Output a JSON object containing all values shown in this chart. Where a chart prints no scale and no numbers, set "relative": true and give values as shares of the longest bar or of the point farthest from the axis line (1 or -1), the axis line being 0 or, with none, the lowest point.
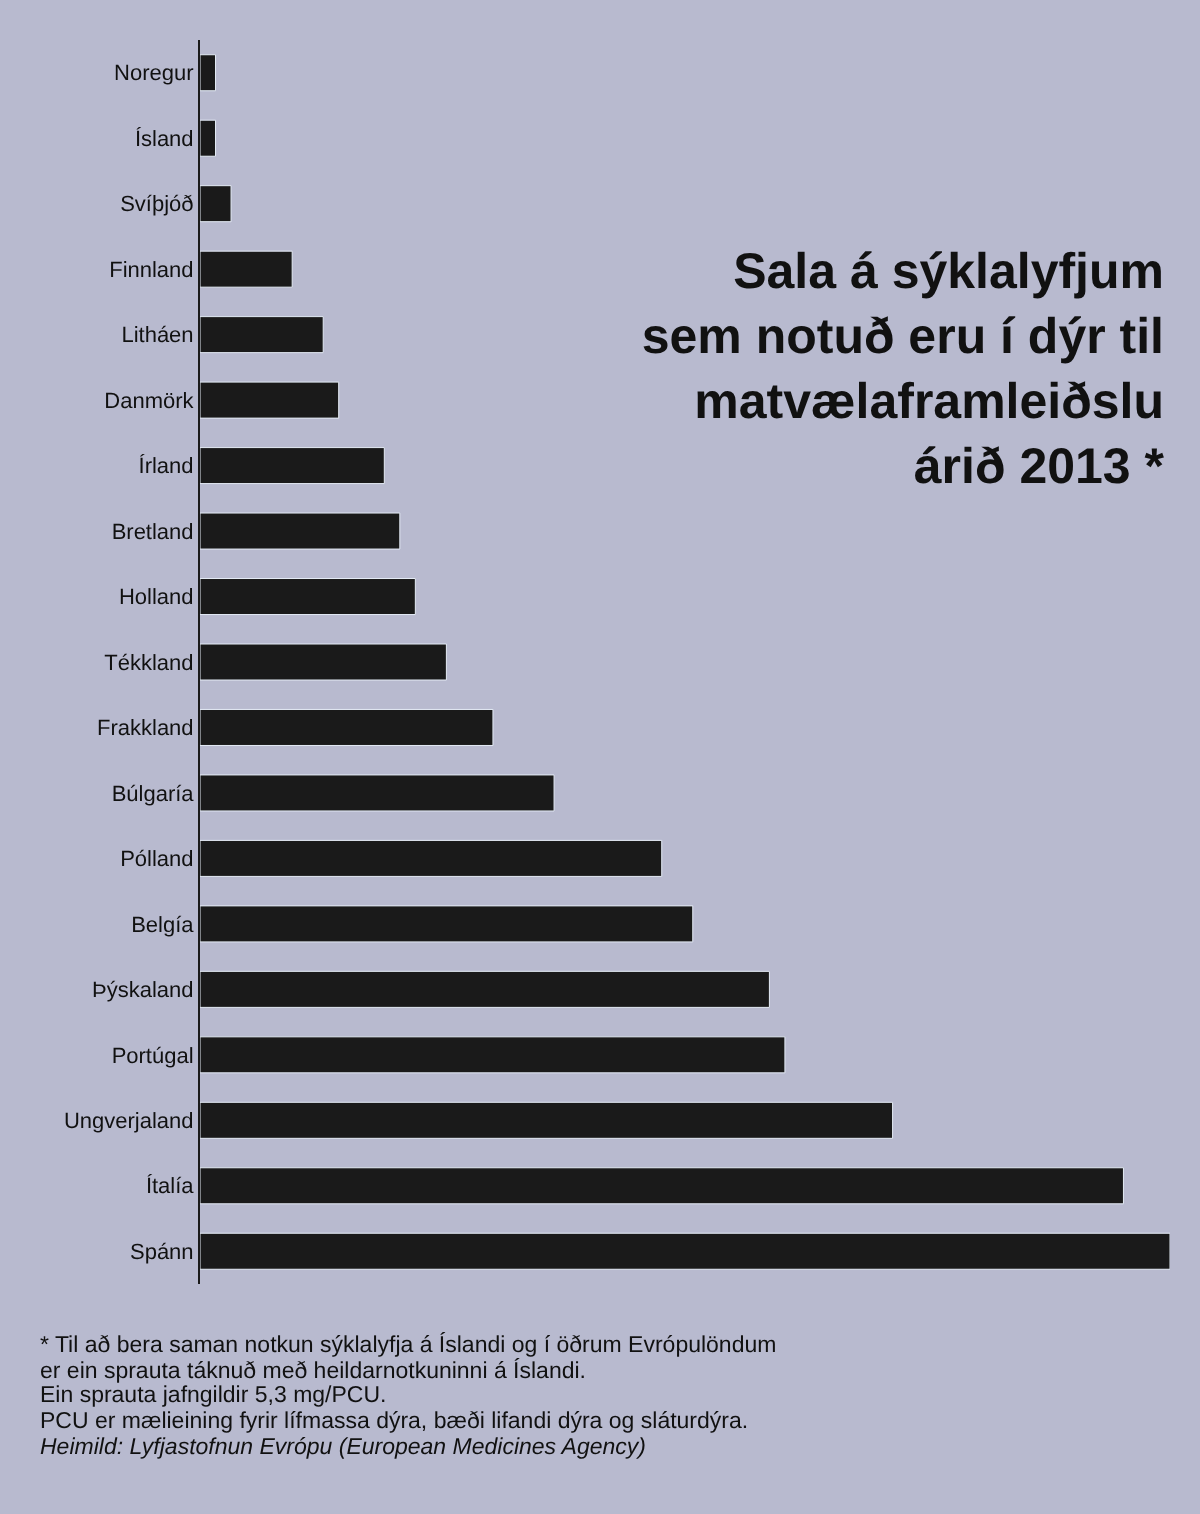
{
  "chart_data": {
    "type": "bar",
    "orientation": "horizontal",
    "relative": true,
    "title": "Sala á sýklalyfjum\nsem notuð eru í dýr til\nmatvælaframleiðslu\nárið 2013 *",
    "categories": [
      "Noregur",
      "Ísland",
      "Svíþjóð",
      "Finnland",
      "Litháen",
      "Danmörk",
      "Írland",
      "Bretland",
      "Holland",
      "Tékkland",
      "Frakkland",
      "Búlgaría",
      "Pólland",
      "Belgía",
      "Þýskaland",
      "Portúgal",
      "Ungverjaland",
      "Ítalía",
      "Spánn"
    ],
    "values": [
      0.016,
      0.016,
      0.032,
      0.095,
      0.127,
      0.143,
      0.19,
      0.206,
      0.222,
      0.254,
      0.302,
      0.365,
      0.476,
      0.508,
      0.587,
      0.603,
      0.714,
      0.952,
      1
    ],
    "color": "#1a1a1a",
    "annotations": [
      "* Til að bera saman notkun sýklalyfja á Íslandi og í öðrum Evrópulöndum",
      "er ein sprauta táknuð með heildarnotkuninni á Íslandi.",
      "Ein sprauta jafngildir 5,3 mg/PCU.",
      "PCU er mælieining fyrir lífmassa dýra, bæði lifandi dýra og sláturdýra.",
      "Heimild: Lyfjastofnun Evrópu (European Medicines Agency)"
    ],
    "legend": false
  }
}
